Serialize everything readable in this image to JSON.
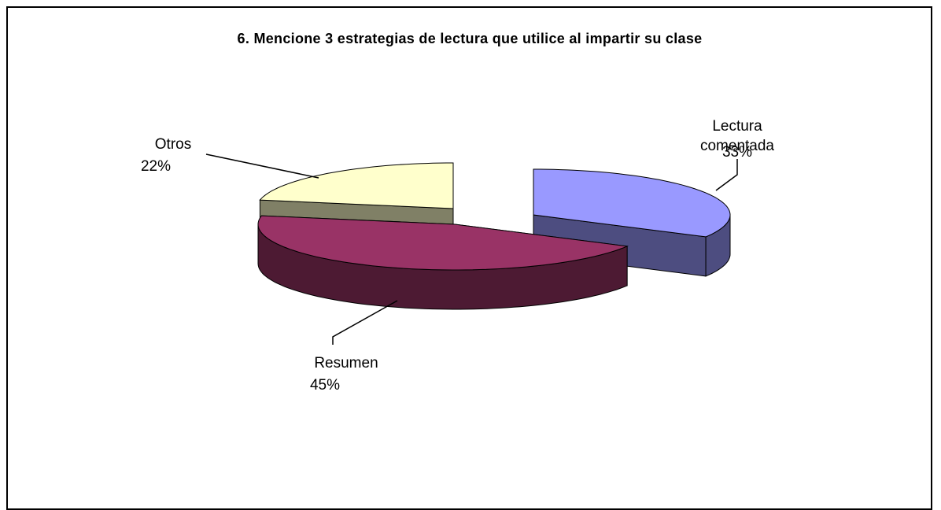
{
  "chart_data": {
    "type": "pie3d",
    "title": "6. Mencione 3 estrategias de lectura que utilice al impartir su clase",
    "categories": [
      "Lectura comentada",
      "Resumen",
      "Otros"
    ],
    "values": [
      33,
      45,
      22
    ],
    "value_labels": [
      "33%",
      "45%",
      "22%"
    ],
    "colors": [
      "#9999ff",
      "#993366",
      "#ffffcc"
    ],
    "side_colors": [
      "#4d4d80",
      "#4d1a33",
      "#808066"
    ]
  }
}
